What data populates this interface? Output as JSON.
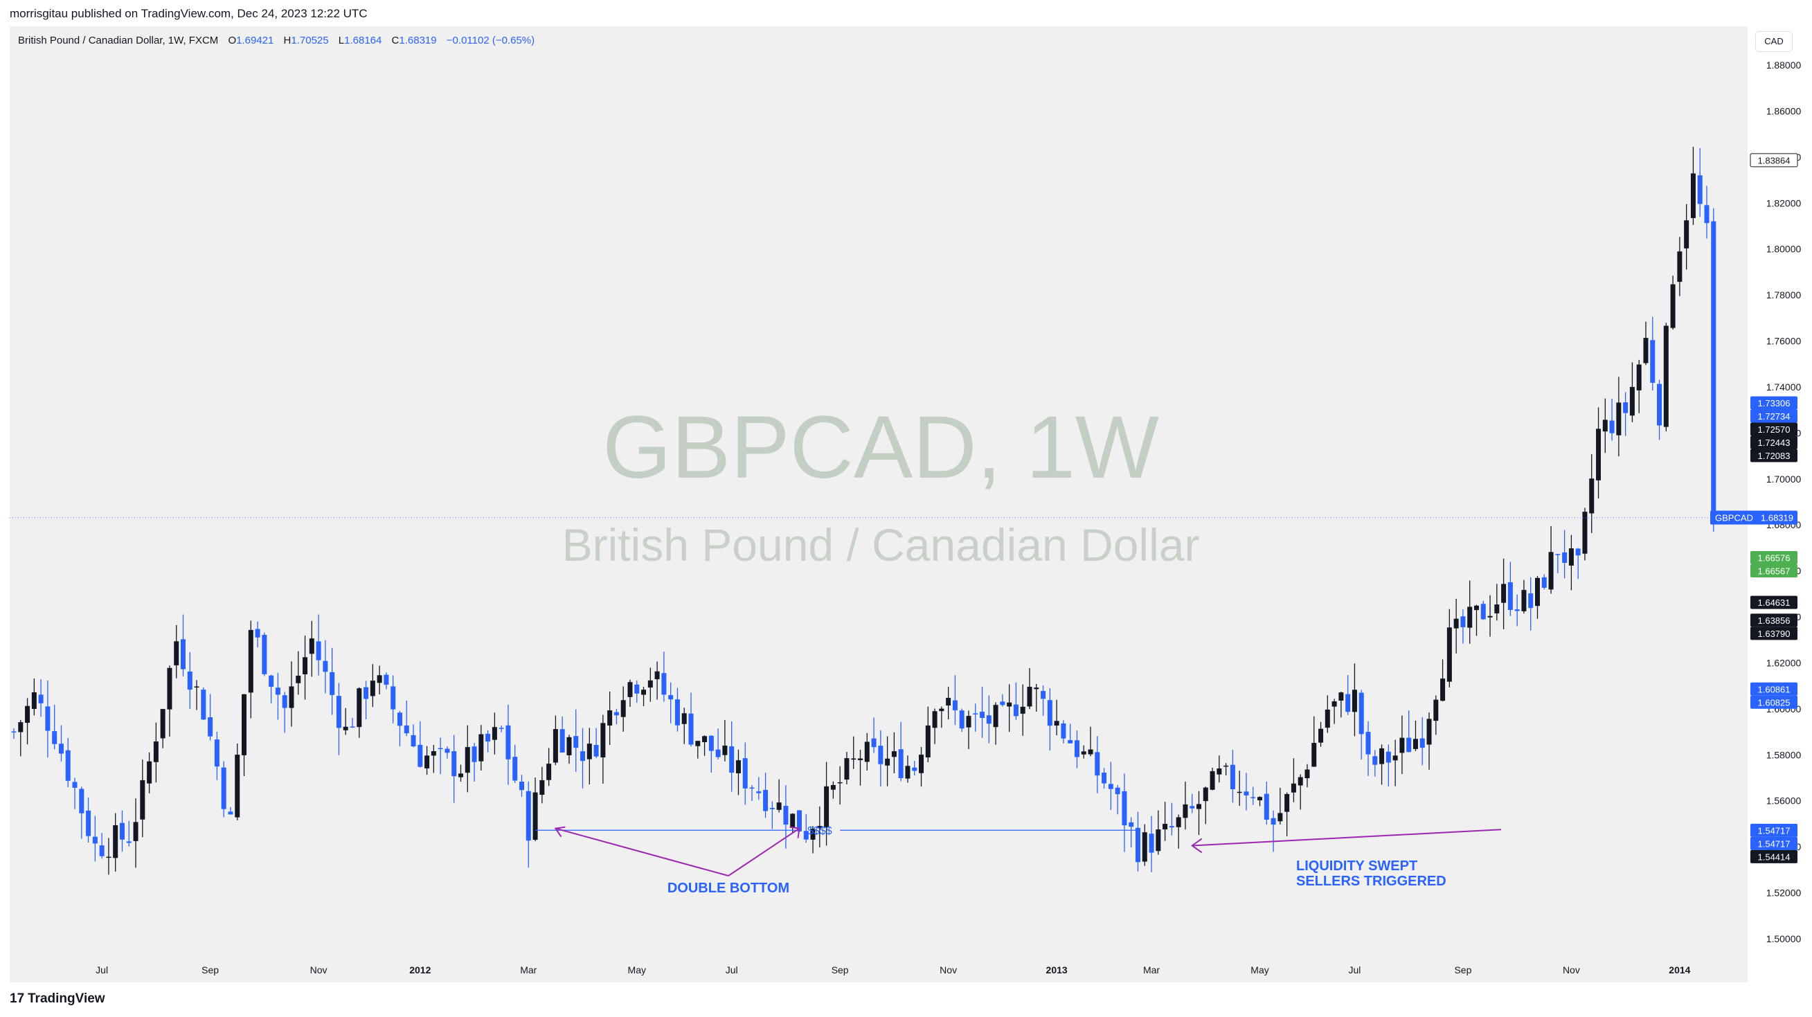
{
  "publisher_line": "morrisgitau published on TradingView.com, Dec 24, 2023 12:22 UTC",
  "legend": {
    "symbol": "British Pound / Canadian Dollar, 1W, FXCM",
    "o_label": "O",
    "o": "1.69421",
    "h_label": "H",
    "h": "1.70525",
    "l_label": "L",
    "l": "1.68164",
    "c_label": "C",
    "c": "1.68319",
    "change": "−0.01102 (−0.65%)"
  },
  "currency_chip": "CAD",
  "watermark": {
    "title": "GBPCAD, 1W",
    "subtitle": "British Pound / Canadian Dollar"
  },
  "footer": {
    "logo_text": "TradingView"
  },
  "colors": {
    "up": "#131722",
    "down": "#2962ff",
    "annotation": "#9c27b0",
    "price_line": "#2962ff",
    "green_tag": "#4caf50"
  },
  "chart_data": {
    "type": "candlestick",
    "symbol": "GBPCAD",
    "timeframe": "1W",
    "ylim": [
      1.49,
      1.89
    ],
    "y_ticks": [
      "1.88000",
      "1.86000",
      "1.84000",
      "1.82000",
      "1.80000",
      "1.78000",
      "1.76000",
      "1.74000",
      "1.72000",
      "1.70000",
      "1.68000",
      "1.66000",
      "1.64000",
      "1.62000",
      "1.60000",
      "1.58000",
      "1.56000",
      "1.54000",
      "1.52000",
      "1.50000"
    ],
    "x_ticks": [
      {
        "label": "Jul",
        "bar": 13
      },
      {
        "label": "Sep",
        "bar": 29
      },
      {
        "label": "Nov",
        "bar": 45
      },
      {
        "label": "2012",
        "bar": 60,
        "bold": true
      },
      {
        "label": "Mar",
        "bar": 76
      },
      {
        "label": "May",
        "bar": 92
      },
      {
        "label": "Jul",
        "bar": 106
      },
      {
        "label": "Sep",
        "bar": 122
      },
      {
        "label": "Nov",
        "bar": 138
      },
      {
        "label": "2013",
        "bar": 154,
        "bold": true
      },
      {
        "label": "Mar",
        "bar": 168
      },
      {
        "label": "May",
        "bar": 184
      },
      {
        "label": "Jul",
        "bar": 198
      },
      {
        "label": "Sep",
        "bar": 214
      },
      {
        "label": "Nov",
        "bar": 230
      },
      {
        "label": "2014",
        "bar": 246,
        "bold": true
      }
    ],
    "last_price": {
      "symbol": "GBPCAD",
      "value": 1.68319
    },
    "price_tags": [
      {
        "value": 1.83864,
        "style": "outline"
      },
      {
        "value": 1.73306,
        "style": "blue"
      },
      {
        "value": 1.72734,
        "style": "blue"
      },
      {
        "value": 1.7257,
        "style": "black"
      },
      {
        "value": 1.72443,
        "style": "black"
      },
      {
        "value": 1.72083,
        "style": "black"
      },
      {
        "value": 1.66576,
        "style": "green"
      },
      {
        "value": 1.66567,
        "style": "green"
      },
      {
        "value": 1.64631,
        "style": "black"
      },
      {
        "value": 1.63856,
        "style": "black"
      },
      {
        "value": 1.6379,
        "style": "black"
      },
      {
        "value": 1.60861,
        "style": "blue"
      },
      {
        "value": 1.60825,
        "style": "blue"
      },
      {
        "value": 1.54717,
        "style": "blue"
      },
      {
        "value": 1.54717,
        "style": "blue"
      },
      {
        "value": 1.54414,
        "style": "black"
      }
    ],
    "anchors": [
      {
        "bar": 0,
        "value": 1.59
      },
      {
        "bar": 3,
        "value": 1.605
      },
      {
        "bar": 6,
        "value": 1.59
      },
      {
        "bar": 12,
        "value": 1.54
      },
      {
        "bar": 17,
        "value": 1.545
      },
      {
        "bar": 19,
        "value": 1.563
      },
      {
        "bar": 24,
        "value": 1.63
      },
      {
        "bar": 28,
        "value": 1.6
      },
      {
        "bar": 32,
        "value": 1.55
      },
      {
        "bar": 35,
        "value": 1.635
      },
      {
        "bar": 40,
        "value": 1.6
      },
      {
        "bar": 44,
        "value": 1.63
      },
      {
        "bar": 49,
        "value": 1.59
      },
      {
        "bar": 53,
        "value": 1.615
      },
      {
        "bar": 60,
        "value": 1.58
      },
      {
        "bar": 66,
        "value": 1.575
      },
      {
        "bar": 72,
        "value": 1.59
      },
      {
        "bar": 76,
        "value": 1.549
      },
      {
        "bar": 80,
        "value": 1.59
      },
      {
        "bar": 85,
        "value": 1.58
      },
      {
        "bar": 90,
        "value": 1.61
      },
      {
        "bar": 94,
        "value": 1.615
      },
      {
        "bar": 100,
        "value": 1.59
      },
      {
        "bar": 106,
        "value": 1.575
      },
      {
        "bar": 112,
        "value": 1.56
      },
      {
        "bar": 117,
        "value": 1.547
      },
      {
        "bar": 120,
        "value": 1.56
      },
      {
        "bar": 125,
        "value": 1.58
      },
      {
        "bar": 133,
        "value": 1.575
      },
      {
        "bar": 136,
        "value": 1.605
      },
      {
        "bar": 140,
        "value": 1.595
      },
      {
        "bar": 146,
        "value": 1.595
      },
      {
        "bar": 150,
        "value": 1.61
      },
      {
        "bar": 155,
        "value": 1.59
      },
      {
        "bar": 162,
        "value": 1.565
      },
      {
        "bar": 166,
        "value": 1.54
      },
      {
        "bar": 170,
        "value": 1.545
      },
      {
        "bar": 174,
        "value": 1.555
      },
      {
        "bar": 178,
        "value": 1.57
      },
      {
        "bar": 183,
        "value": 1.565
      },
      {
        "bar": 186,
        "value": 1.55
      },
      {
        "bar": 190,
        "value": 1.57
      },
      {
        "bar": 194,
        "value": 1.6
      },
      {
        "bar": 198,
        "value": 1.605
      },
      {
        "bar": 200,
        "value": 1.575
      },
      {
        "bar": 204,
        "value": 1.58
      },
      {
        "bar": 208,
        "value": 1.59
      },
      {
        "bar": 212,
        "value": 1.63
      },
      {
        "bar": 216,
        "value": 1.64
      },
      {
        "bar": 220,
        "value": 1.65
      },
      {
        "bar": 224,
        "value": 1.645
      },
      {
        "bar": 228,
        "value": 1.67
      },
      {
        "bar": 231,
        "value": 1.66
      },
      {
        "bar": 234,
        "value": 1.72
      },
      {
        "bar": 238,
        "value": 1.73
      },
      {
        "bar": 241,
        "value": 1.76
      },
      {
        "bar": 243,
        "value": 1.73
      },
      {
        "bar": 245,
        "value": 1.79
      },
      {
        "bar": 248,
        "value": 1.83
      },
      {
        "bar": 250,
        "value": 1.805
      },
      {
        "bar": 251,
        "value": 1.838
      }
    ],
    "annotations": [
      {
        "text": "DOUBLE BOTTOM"
      },
      {
        "text": "$$$$"
      },
      {
        "text": "LIQUIDITY SWEPT"
      },
      {
        "text": "SELLERS TRIGGERED"
      }
    ]
  }
}
